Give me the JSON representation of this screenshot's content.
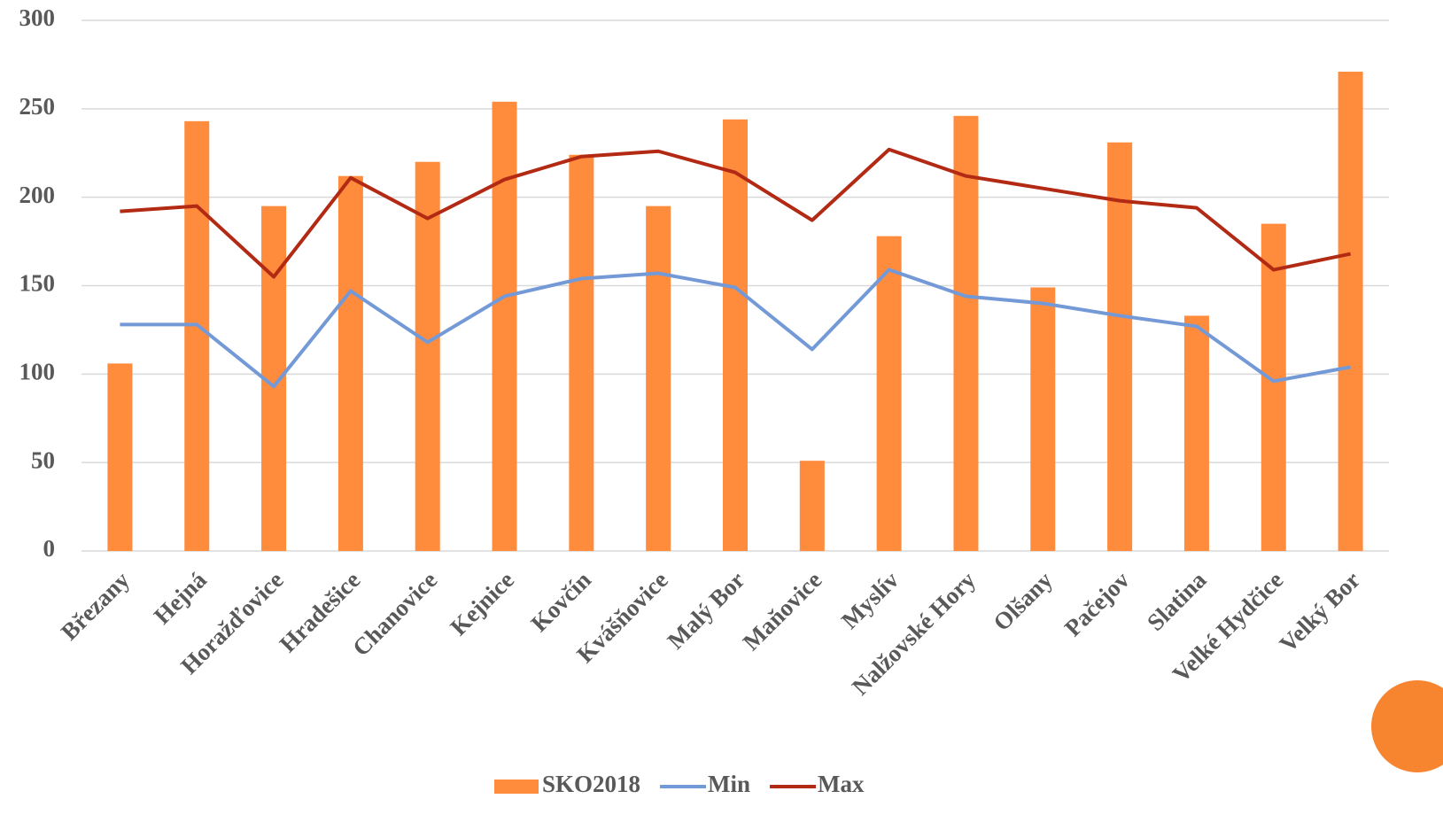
{
  "chart_data": {
    "type": "combo",
    "categories": [
      "Březany",
      "Hejná",
      "Horažďovice",
      "Hradešice",
      "Chanovice",
      "Kejnice",
      "Kovčín",
      "Kvášňovice",
      "Malý Bor",
      "Maňovice",
      "Myslív",
      "Nalžovské Hory",
      "Olšany",
      "Pačejov",
      "Slatina",
      "Velké Hydčice",
      "Velký Bor"
    ],
    "series": [
      {
        "name": "SKO2018",
        "type": "bar",
        "color": "#ff8b3d",
        "values": [
          106,
          243,
          195,
          212,
          220,
          254,
          224,
          195,
          244,
          51,
          178,
          246,
          149,
          231,
          133,
          185,
          271
        ]
      },
      {
        "name": "Min",
        "type": "line",
        "color": "#7399d6",
        "values": [
          128,
          128,
          93,
          147,
          118,
          144,
          154,
          157,
          149,
          114,
          159,
          144,
          140,
          133,
          127,
          96,
          104
        ]
      },
      {
        "name": "Max",
        "type": "line",
        "color": "#b22a14",
        "values": [
          192,
          195,
          155,
          211,
          188,
          210,
          223,
          226,
          214,
          187,
          227,
          212,
          205,
          198,
          194,
          159,
          168
        ]
      }
    ],
    "ylim": [
      0,
      300
    ],
    "yticks": [
      0,
      50,
      100,
      150,
      200,
      250,
      300
    ],
    "grid": true,
    "legend": "bottom"
  }
}
